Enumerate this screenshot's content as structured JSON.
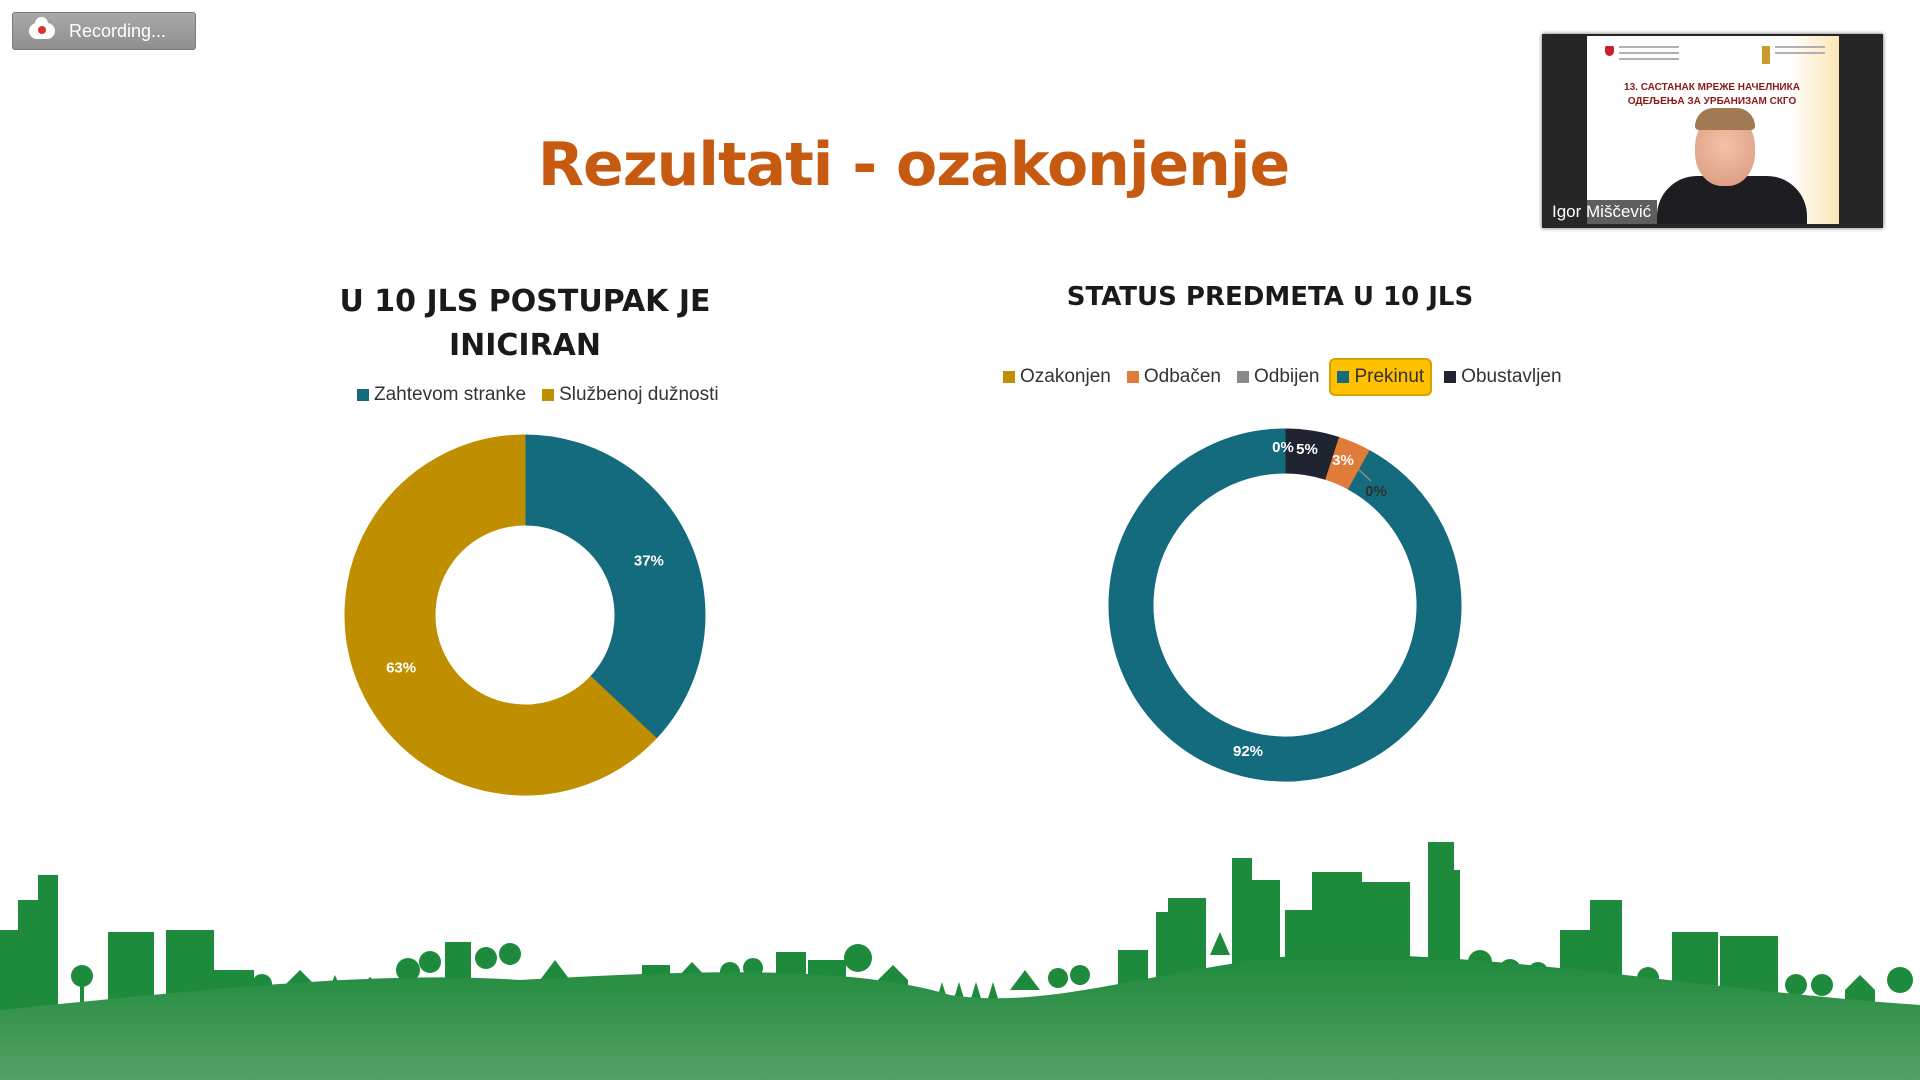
{
  "recording": {
    "label": "Recording..."
  },
  "slide": {
    "title": "Rezultati - ozakonjenje"
  },
  "video": {
    "participant_name": "Igor Miščević",
    "slide_title_line1": "13. САСТАНАК МРЕЖЕ НАЧЕЛНИКА",
    "slide_title_line2": "ОДЕЉЕЊА ЗА УРБАНИЗАМ СКГО"
  },
  "chart_data": [
    {
      "type": "pie",
      "title_line1": "U 10 JLS POSTUPAK  JE",
      "title_line2": "INICIRAN",
      "legend_position": "top",
      "categories": [
        "Zahtevom stranke",
        "Službenoj dužnosti"
      ],
      "values": [
        37,
        63
      ],
      "data_labels": [
        "37%",
        "63%"
      ],
      "colors": [
        "#136b7d",
        "#bf8f00"
      ]
    },
    {
      "type": "pie",
      "title": "STATUS PREDMETA U 10 JLS",
      "legend_position": "top",
      "categories": [
        "Ozakonjen",
        "Odbačen",
        "Odbijen",
        "Prekinut",
        "Obustavljen"
      ],
      "values": [
        0,
        3,
        0,
        92,
        5
      ],
      "data_labels": [
        "0%",
        "3%",
        "0%",
        "92%",
        "5%"
      ],
      "colors": [
        "#bf8f00",
        "#e07b39",
        "#8a8a8a",
        "#136b7d",
        "#1f2430"
      ],
      "highlighted_legend_item": "Prekinut"
    }
  ],
  "colors": {
    "title": "#c65a11",
    "city_green": "#1e8a3c"
  }
}
